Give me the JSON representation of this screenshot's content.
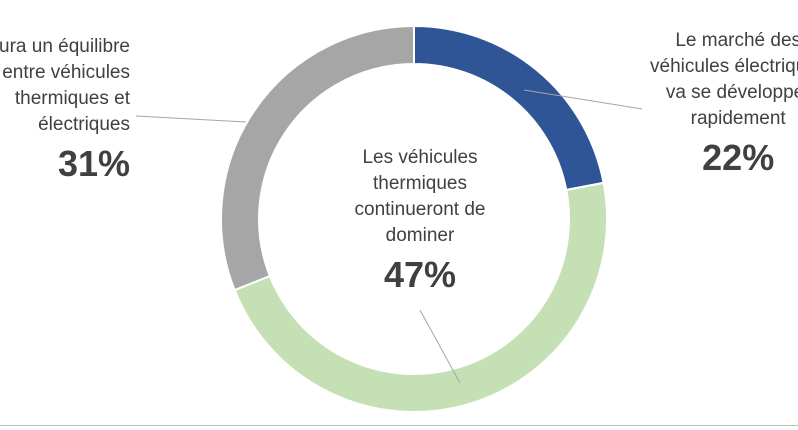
{
  "chart_data": {
    "type": "pie",
    "variant": "donut",
    "title": "",
    "slices": [
      {
        "label_lines": [
          "Le marché des",
          "véhicules électriques",
          "va se développer",
          "rapidement"
        ],
        "value": 22,
        "display": "22%",
        "color": "#2f5597"
      },
      {
        "label_lines": [
          "Les véhicules",
          "thermiques",
          "continueront de",
          "dominer"
        ],
        "value": 47,
        "display": "47%",
        "color": "#c5e0b4"
      },
      {
        "label_lines": [
          "Il y aura un équilibre",
          "entre véhicules",
          "thermiques et",
          "électriques"
        ],
        "value": 31,
        "display": "31%",
        "color": "#a6a6a6"
      }
    ],
    "start_angle_deg": 0,
    "direction": "clockwise",
    "legend": "none",
    "leader_line_color": "#a6a6a6"
  }
}
